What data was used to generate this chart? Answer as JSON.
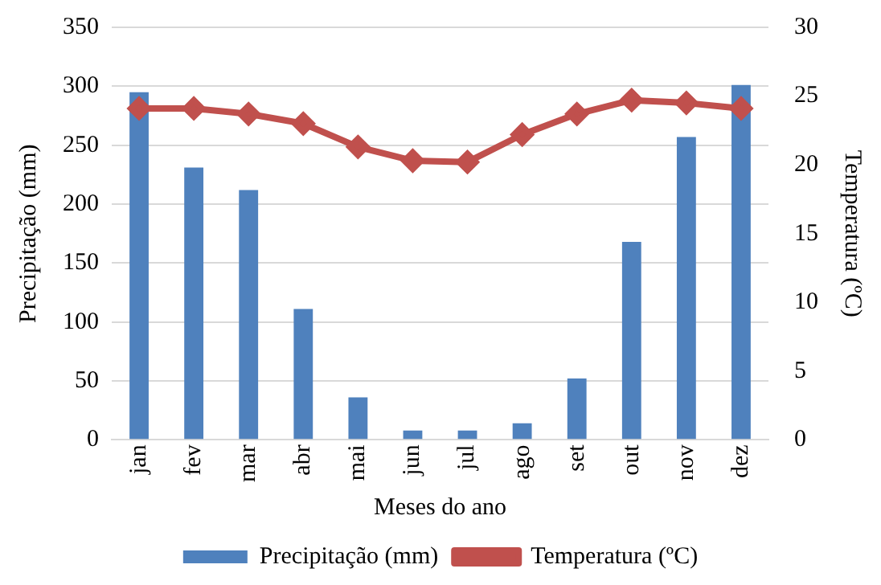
{
  "chart_data": {
    "type": "bar",
    "xlabel": "Meses do ano",
    "ylabel": "Precipitação (mm)",
    "y2label": "Temperatura (ºC)",
    "categories": [
      "jan",
      "fev",
      "mar",
      "abr",
      "mai",
      "jun",
      "jul",
      "ago",
      "set",
      "out",
      "nov",
      "dez"
    ],
    "series": [
      {
        "name": "Precipitação (mm)",
        "color": "#4f81bd",
        "values": [
          295,
          231,
          212,
          111,
          36,
          8,
          8,
          14,
          52,
          168,
          257,
          301
        ]
      },
      {
        "name": "Temperatura (ºC)",
        "type": "line",
        "axis": "y2",
        "color": "#c0504d",
        "marker": "diamond",
        "values": [
          24.1,
          24.1,
          23.7,
          23.0,
          21.3,
          20.3,
          20.2,
          22.2,
          23.7,
          24.7,
          24.5,
          24.1
        ]
      }
    ],
    "ylim": [
      0,
      350
    ],
    "yticks": [
      0,
      50,
      100,
      150,
      200,
      250,
      300,
      350
    ],
    "y2lim": [
      0,
      30
    ],
    "y2ticks": [
      0,
      5,
      10,
      15,
      20,
      25,
      30
    ],
    "grid": "y",
    "legend": "bottom"
  }
}
